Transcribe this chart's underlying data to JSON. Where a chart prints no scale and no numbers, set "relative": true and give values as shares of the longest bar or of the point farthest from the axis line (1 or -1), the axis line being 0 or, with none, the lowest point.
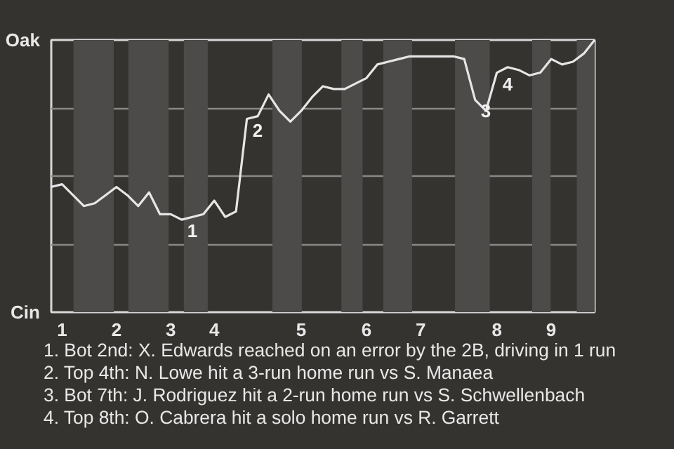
{
  "chart_data": {
    "type": "line",
    "relative": true,
    "categories": [
      null,
      "1",
      null,
      null,
      null,
      null,
      "2",
      null,
      null,
      null,
      null,
      "3",
      null,
      null,
      null,
      "4",
      null,
      null,
      null,
      null,
      null,
      null,
      null,
      "5",
      null,
      null,
      null,
      null,
      null,
      "6",
      null,
      null,
      null,
      null,
      "7",
      null,
      null,
      null,
      null,
      null,
      null,
      "8",
      null,
      null,
      null,
      null,
      "9",
      null,
      null,
      null,
      null
    ],
    "series": [
      {
        "color": "#e6e6e6",
        "values": [
          0.46,
          0.47,
          0.43,
          0.39,
          0.4,
          0.43,
          0.46,
          0.43,
          0.39,
          0.44,
          0.36,
          0.36,
          0.34,
          0.35,
          0.36,
          0.41,
          0.35,
          0.37,
          0.71,
          0.72,
          0.8,
          0.74,
          0.7,
          0.74,
          0.79,
          0.83,
          0.82,
          0.82,
          0.84,
          0.86,
          0.91,
          0.92,
          0.93,
          0.94,
          0.94,
          0.94,
          0.94,
          0.94,
          0.93,
          0.78,
          0.74,
          0.88,
          0.9,
          0.89,
          0.87,
          0.88,
          0.93,
          0.91,
          0.92,
          0.95,
          1.0
        ]
      }
    ],
    "grid": "y",
    "marker": "none",
    "line_style": "solid",
    "annotations": [
      "Oak",
      "Cin",
      {
        "text": "1",
        "y": 0.34
      },
      {
        "text": "2",
        "y": 0.71
      },
      {
        "text": "3",
        "y": 0.78
      },
      {
        "text": "4",
        "y": 0.88
      },
      "1. Bot 2nd: X. Edwards reached on an error by the 2B, driving in 1 run",
      "2. Top 4th: N. Lowe hit a 3-run home run vs S. Manaea",
      "3. Bot 7th: J. Rodriguez hit a 2-run home run vs S. Schwellenbach",
      "4. Top 8th: O. Cabrera hit a solo home run vs R. Garrett"
    ]
  }
}
